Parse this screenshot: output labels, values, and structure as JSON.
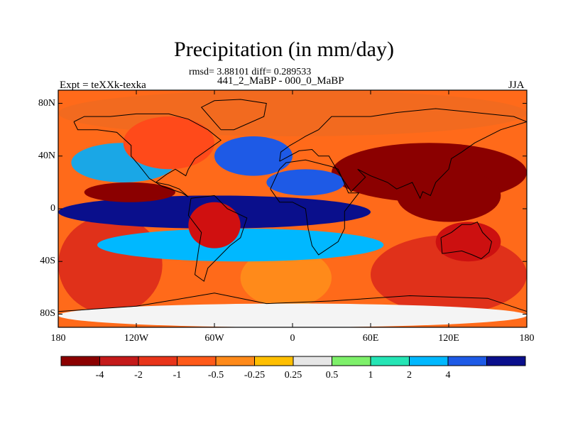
{
  "title": "Precipitation (in mm/day)",
  "stats": "rmsd= 3.88101 diff= 0.289533",
  "subtitle": "441_2_MaBP - 000_0_MaBP",
  "left_string": "Expt = teXXk-texka",
  "right_string": "JJA",
  "map": {
    "projection": "cylindrical equidistant",
    "lon_range": [
      -180,
      180
    ],
    "lat_range": [
      -90,
      90
    ],
    "y_ticks": [
      {
        "lat": 80,
        "label": "80N"
      },
      {
        "lat": 40,
        "label": "40N"
      },
      {
        "lat": 0,
        "label": "0"
      },
      {
        "lat": -40,
        "label": "40S"
      },
      {
        "lat": -80,
        "label": "80S"
      }
    ],
    "x_ticks": [
      {
        "lon": -180,
        "label": "180"
      },
      {
        "lon": -120,
        "label": "120W"
      },
      {
        "lon": -60,
        "label": "60W"
      },
      {
        "lon": 0,
        "label": "0"
      },
      {
        "lon": 60,
        "label": "60E"
      },
      {
        "lon": 120,
        "label": "120E"
      },
      {
        "lon": 180,
        "label": "180"
      }
    ],
    "features": [
      {
        "name": "north-polar-band",
        "lon": [
          -180,
          180
        ],
        "lat": [
          55,
          90
        ],
        "color": "#f26a1f"
      },
      {
        "name": "south-pacific-dry",
        "lon": [
          -180,
          -100
        ],
        "lat": [
          -80,
          -5
        ],
        "color": "#e0311a"
      },
      {
        "name": "south-atlantic-dry",
        "lon": [
          -40,
          30
        ],
        "lat": [
          -75,
          -30
        ],
        "color": "#ff8a1a"
      },
      {
        "name": "south-indian-dry",
        "lon": [
          60,
          180
        ],
        "lat": [
          -80,
          -20
        ],
        "color": "#e0311a"
      },
      {
        "name": "antarctic-margin",
        "lon": [
          -180,
          180
        ],
        "lat": [
          -90,
          -72
        ],
        "color": "#f4f4f4"
      },
      {
        "name": "north-pacific-wet",
        "lon": [
          -170,
          -90
        ],
        "lat": [
          20,
          50
        ],
        "color": "#1aa7e6"
      },
      {
        "name": "north-atlantic-wet",
        "lon": [
          -60,
          0
        ],
        "lat": [
          25,
          55
        ],
        "color": "#1e5ae6"
      },
      {
        "name": "tropical-wet-band",
        "lon": [
          -180,
          60
        ],
        "lat": [
          -15,
          10
        ],
        "color": "#0a0f8c"
      },
      {
        "name": "southern-wet-band",
        "lon": [
          -150,
          70
        ],
        "lat": [
          -40,
          -15
        ],
        "color": "#00b8ff"
      },
      {
        "name": "mid-pacific-dry-tongue",
        "lon": [
          -160,
          -90
        ],
        "lat": [
          5,
          20
        ],
        "color": "#8b0000"
      },
      {
        "name": "africa-asia-dry",
        "lon": [
          30,
          180
        ],
        "lat": [
          5,
          50
        ],
        "color": "#8b0000"
      },
      {
        "name": "sahara-dry",
        "lon": [
          -20,
          40
        ],
        "lat": [
          10,
          30
        ],
        "color": "#1e5ae6"
      },
      {
        "name": "asia-dry-core",
        "lon": [
          80,
          160
        ],
        "lat": [
          -10,
          30
        ],
        "color": "#8b0000"
      },
      {
        "name": "australia-dry",
        "lon": [
          110,
          160
        ],
        "lat": [
          -40,
          -10
        ],
        "color": "#cc1010"
      },
      {
        "name": "south-america-dry",
        "lon": [
          -80,
          -40
        ],
        "lat": [
          -30,
          5
        ],
        "color": "#d01010"
      },
      {
        "name": "north-america-mixed",
        "lon": [
          -130,
          -60
        ],
        "lat": [
          30,
          70
        ],
        "color": "#ff4a1a"
      }
    ],
    "coastlines": [
      {
        "name": "north-america-coast",
        "points": [
          [
            -168,
            66
          ],
          [
            -160,
            70
          ],
          [
            -140,
            70
          ],
          [
            -120,
            72
          ],
          [
            -95,
            72
          ],
          [
            -80,
            68
          ],
          [
            -65,
            60
          ],
          [
            -55,
            52
          ],
          [
            -65,
            45
          ],
          [
            -75,
            38
          ],
          [
            -80,
            30
          ],
          [
            -82,
            25
          ],
          [
            -90,
            30
          ],
          [
            -97,
            26
          ],
          [
            -105,
            20
          ],
          [
            -95,
            18
          ],
          [
            -87,
            15
          ],
          [
            -80,
            9
          ],
          [
            -85,
            12
          ],
          [
            -100,
            17
          ],
          [
            -110,
            23
          ],
          [
            -118,
            33
          ],
          [
            -124,
            40
          ],
          [
            -124,
            48
          ],
          [
            -135,
            58
          ],
          [
            -150,
            60
          ],
          [
            -165,
            60
          ],
          [
            -168,
            66
          ]
        ]
      },
      {
        "name": "greenland-coast",
        "points": [
          [
            -55,
            60
          ],
          [
            -45,
            60
          ],
          [
            -22,
            70
          ],
          [
            -20,
            80
          ],
          [
            -40,
            83
          ],
          [
            -60,
            82
          ],
          [
            -70,
            77
          ],
          [
            -55,
            60
          ]
        ]
      },
      {
        "name": "south-america-coast",
        "points": [
          [
            -78,
            8
          ],
          [
            -60,
            10
          ],
          [
            -50,
            0
          ],
          [
            -35,
            -7
          ],
          [
            -40,
            -22
          ],
          [
            -48,
            -28
          ],
          [
            -58,
            -38
          ],
          [
            -65,
            -45
          ],
          [
            -68,
            -55
          ],
          [
            -75,
            -50
          ],
          [
            -72,
            -30
          ],
          [
            -70,
            -18
          ],
          [
            -80,
            -5
          ],
          [
            -78,
            8
          ]
        ]
      },
      {
        "name": "africa-coast",
        "points": [
          [
            -17,
            15
          ],
          [
            -10,
            30
          ],
          [
            -5,
            35
          ],
          [
            10,
            37
          ],
          [
            30,
            32
          ],
          [
            35,
            30
          ],
          [
            43,
            12
          ],
          [
            51,
            12
          ],
          [
            40,
            -2
          ],
          [
            40,
            -15
          ],
          [
            35,
            -25
          ],
          [
            20,
            -35
          ],
          [
            15,
            -28
          ],
          [
            12,
            -15
          ],
          [
            10,
            0
          ],
          [
            0,
            5
          ],
          [
            -10,
            5
          ],
          [
            -17,
            15
          ]
        ]
      },
      {
        "name": "eurasia-coast",
        "points": [
          [
            -10,
            36
          ],
          [
            -9,
            43
          ],
          [
            -2,
            48
          ],
          [
            5,
            52
          ],
          [
            10,
            55
          ],
          [
            20,
            60
          ],
          [
            30,
            70
          ],
          [
            60,
            70
          ],
          [
            80,
            73
          ],
          [
            110,
            76
          ],
          [
            140,
            73
          ],
          [
            170,
            70
          ],
          [
            180,
            66
          ],
          [
            160,
            60
          ],
          [
            140,
            50
          ],
          [
            130,
            43
          ],
          [
            122,
            38
          ],
          [
            120,
            30
          ],
          [
            110,
            20
          ],
          [
            106,
            10
          ],
          [
            100,
            13
          ],
          [
            98,
            8
          ],
          [
            92,
            20
          ],
          [
            80,
            15
          ],
          [
            73,
            20
          ],
          [
            60,
            25
          ],
          [
            50,
            30
          ],
          [
            56,
            24
          ],
          [
            45,
            13
          ],
          [
            35,
            28
          ],
          [
            28,
            40
          ],
          [
            20,
            40
          ],
          [
            15,
            45
          ],
          [
            5,
            44
          ],
          [
            -10,
            36
          ]
        ]
      },
      {
        "name": "australia-coast",
        "points": [
          [
            114,
            -22
          ],
          [
            122,
            -18
          ],
          [
            130,
            -12
          ],
          [
            137,
            -12
          ],
          [
            142,
            -10
          ],
          [
            146,
            -18
          ],
          [
            153,
            -25
          ],
          [
            151,
            -33
          ],
          [
            145,
            -38
          ],
          [
            138,
            -35
          ],
          [
            130,
            -32
          ],
          [
            115,
            -34
          ],
          [
            114,
            -22
          ]
        ]
      },
      {
        "name": "antarctica-coast",
        "points": [
          [
            -180,
            -78
          ],
          [
            -120,
            -74
          ],
          [
            -60,
            -64
          ],
          [
            -20,
            -72
          ],
          [
            30,
            -70
          ],
          [
            90,
            -66
          ],
          [
            150,
            -68
          ],
          [
            180,
            -78
          ]
        ]
      }
    ]
  },
  "colorbar": {
    "colors": [
      "#8b0000",
      "#c41a1a",
      "#e8341a",
      "#ff5a1a",
      "#ff8a1a",
      "#ffbf00",
      "#e6e6e6",
      "#7ef06a",
      "#25e5b5",
      "#00b8ff",
      "#1e5ae6",
      "#0a0f8c"
    ],
    "labels": [
      "-4",
      "-2",
      "-1",
      "-0.5",
      "-0.25",
      "0.25",
      "0.5",
      "1",
      "2",
      "4"
    ]
  }
}
